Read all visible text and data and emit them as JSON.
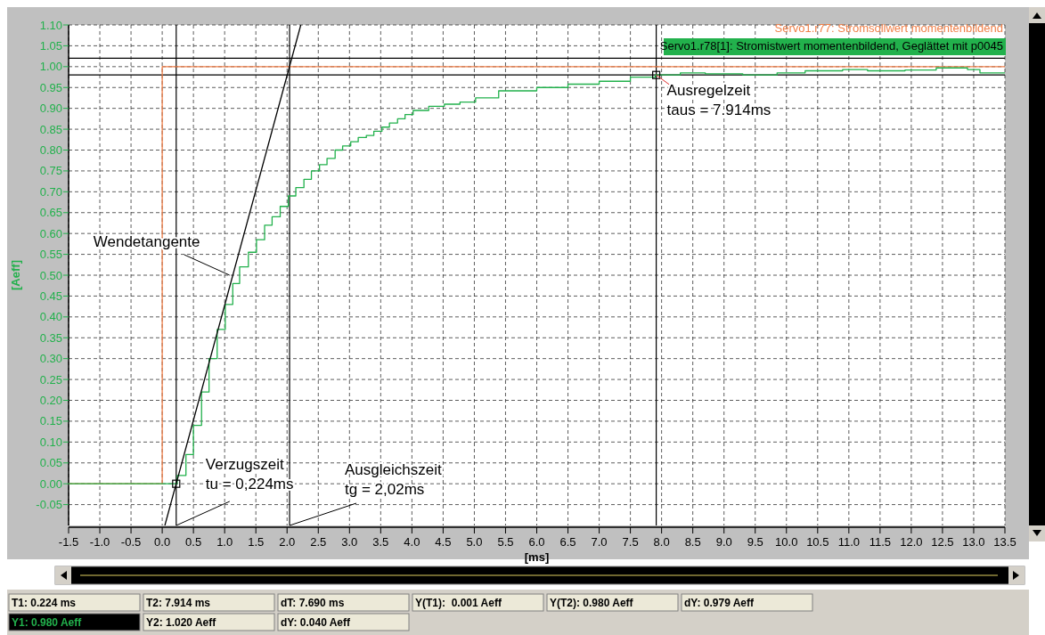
{
  "chart_data": {
    "type": "step",
    "xlabel": "[ms]",
    "ylabel": "[Aeff]",
    "xlim": [
      -1.5,
      13.5
    ],
    "xticks": [
      {
        "value": -1.5,
        "label": "-1.5"
      },
      {
        "value": -1,
        "label": "-1.0"
      },
      {
        "value": -0.5,
        "label": "-0.5"
      },
      {
        "value": 0,
        "label": "0.0"
      },
      {
        "value": 0.5,
        "label": "0.5"
      },
      {
        "value": 1,
        "label": "1.0"
      },
      {
        "value": 1.5,
        "label": "1.5"
      },
      {
        "value": 2,
        "label": "2.0"
      },
      {
        "value": 2.5,
        "label": "2.5"
      },
      {
        "value": 3,
        "label": "3.0"
      },
      {
        "value": 3.5,
        "label": "3.5"
      },
      {
        "value": 4,
        "label": "4.0"
      },
      {
        "value": 4.5,
        "label": "4.5"
      },
      {
        "value": 5,
        "label": "5.0"
      },
      {
        "value": 5.5,
        "label": "5.5"
      },
      {
        "value": 6,
        "label": "6.0"
      },
      {
        "value": 6.5,
        "label": "6.5"
      },
      {
        "value": 7,
        "label": "7.0"
      },
      {
        "value": 7.5,
        "label": "7.5"
      },
      {
        "value": 8,
        "label": "8.0"
      },
      {
        "value": 8.5,
        "label": "8.5"
      },
      {
        "value": 9,
        "label": "9.0"
      },
      {
        "value": 9.5,
        "label": "9.5"
      },
      {
        "value": 10,
        "label": "10.0"
      },
      {
        "value": 10.5,
        "label": "10.5"
      },
      {
        "value": 11,
        "label": "11.0"
      },
      {
        "value": 11.5,
        "label": "11.5"
      },
      {
        "value": 12,
        "label": "12.0"
      },
      {
        "value": 12.5,
        "label": "12.5"
      },
      {
        "value": 13,
        "label": "13.0"
      },
      {
        "value": 13.5,
        "label": "13.5"
      }
    ],
    "ylim": [
      -0.1,
      1.1
    ],
    "yticks": [
      {
        "value": -0.05,
        "label": "-0.05"
      },
      {
        "value": 0,
        "label": "0.00"
      },
      {
        "value": 0.05,
        "label": "0.05"
      },
      {
        "value": 0.1,
        "label": "0.10"
      },
      {
        "value": 0.15,
        "label": "0.15"
      },
      {
        "value": 0.2,
        "label": "0.20"
      },
      {
        "value": 0.25,
        "label": "0.25"
      },
      {
        "value": 0.3,
        "label": "0.30"
      },
      {
        "value": 0.35,
        "label": "0.35"
      },
      {
        "value": 0.4,
        "label": "0.40"
      },
      {
        "value": 0.45,
        "label": "0.45"
      },
      {
        "value": 0.5,
        "label": "0.50"
      },
      {
        "value": 0.55,
        "label": "0.55"
      },
      {
        "value": 0.6,
        "label": "0.60"
      },
      {
        "value": 0.65,
        "label": "0.65"
      },
      {
        "value": 0.7,
        "label": "0.70"
      },
      {
        "value": 0.75,
        "label": "0.75"
      },
      {
        "value": 0.8,
        "label": "0.80"
      },
      {
        "value": 0.85,
        "label": "0.85"
      },
      {
        "value": 0.9,
        "label": "0.90"
      },
      {
        "value": 0.95,
        "label": "0.95"
      },
      {
        "value": 1,
        "label": "1.00"
      },
      {
        "value": 1.05,
        "label": "1.05"
      },
      {
        "value": 1.1,
        "label": "1.10"
      }
    ],
    "grid": true,
    "legend": "top right",
    "series": [
      {
        "name": "Servo1.r77: Stromsollwert momentenbildend",
        "color": "#f0804a",
        "x": [
          -1.5,
          0,
          13.5
        ],
        "values": [
          0,
          1,
          1
        ]
      },
      {
        "name": "Servo1.r78[1]: Stromistwert momentenbildend, Geglättet mit p0045",
        "color": "#22b14c",
        "x": [
          -1.5,
          0.24,
          0.38,
          0.5,
          0.63,
          0.75,
          0.88,
          1.01,
          1.13,
          1.24,
          1.38,
          1.51,
          1.64,
          1.76,
          1.89,
          2.02,
          2.14,
          2.27,
          2.39,
          2.52,
          2.64,
          2.77,
          2.89,
          3.02,
          3.14,
          3.27,
          3.39,
          3.52,
          3.64,
          3.77,
          3.89,
          4.02,
          4.27,
          4.52,
          4.77,
          5.02,
          5.39,
          6.0,
          6.5,
          7.0,
          7.5,
          7.9,
          8.3,
          8.7,
          9.3,
          9.85,
          10.3,
          10.9,
          11.3,
          11.9,
          12.4,
          12.9,
          13.1,
          13.5
        ],
        "values": [
          0,
          0.02,
          0.07,
          0.14,
          0.22,
          0.3,
          0.37,
          0.43,
          0.48,
          0.52,
          0.555,
          0.585,
          0.62,
          0.64,
          0.665,
          0.69,
          0.71,
          0.73,
          0.75,
          0.765,
          0.78,
          0.8,
          0.81,
          0.82,
          0.83,
          0.835,
          0.845,
          0.855,
          0.865,
          0.875,
          0.885,
          0.895,
          0.905,
          0.91,
          0.915,
          0.925,
          0.942,
          0.95,
          0.958,
          0.965,
          0.975,
          0.98,
          0.985,
          0.983,
          0.98,
          0.985,
          0.99,
          0.993,
          0.99,
          0.992,
          0.997,
          0.993,
          0.985,
          0.985
        ]
      },
      {
        "type": "line",
        "color": "#000000",
        "x": [
          0.042,
          2.22
        ],
        "values": [
          -0.1,
          1.1
        ]
      },
      {
        "type": "scatter",
        "color": "#000000",
        "marker": "square",
        "x": [
          0.224,
          7.914
        ],
        "values": [
          0,
          0.98
        ]
      }
    ],
    "ref_lines": [
      {
        "axis": "x",
        "value": 0.224,
        "color": "#000000"
      },
      {
        "axis": "x",
        "value": 2.04,
        "color": "#000000"
      },
      {
        "axis": "x",
        "value": 7.914,
        "color": "#000000"
      },
      {
        "axis": "y",
        "value": 0.98,
        "color": "#000000"
      },
      {
        "axis": "y",
        "value": 1.02,
        "color": "#000000"
      }
    ],
    "annotations": [
      {
        "text": "Wendetangente",
        "x": 1.08,
        "y": 0.5
      },
      {
        "text": "Verzugszeit\ntu = 0,224ms",
        "x": 0.224,
        "y": -0.1
      },
      {
        "text": "Ausgleichszeit\ntg = 2,02ms",
        "x": 2.04,
        "y": -0.1
      },
      {
        "text": "Ausregelzeit\ntaus = 7.914ms",
        "x": 7.914,
        "y": 0.98
      },
      "T1: 0.224 ms",
      "T2: 7.914 ms",
      "dT: 7.690 ms",
      "Y(T1):  0.001 Aeff",
      "Y(T2): 0.980 Aeff",
      "dY: 0.979 Aeff",
      "Y1: 0.980 Aeff",
      "Y2: 1.020 Aeff",
      "dY: 0.040 Aeff"
    ]
  }
}
